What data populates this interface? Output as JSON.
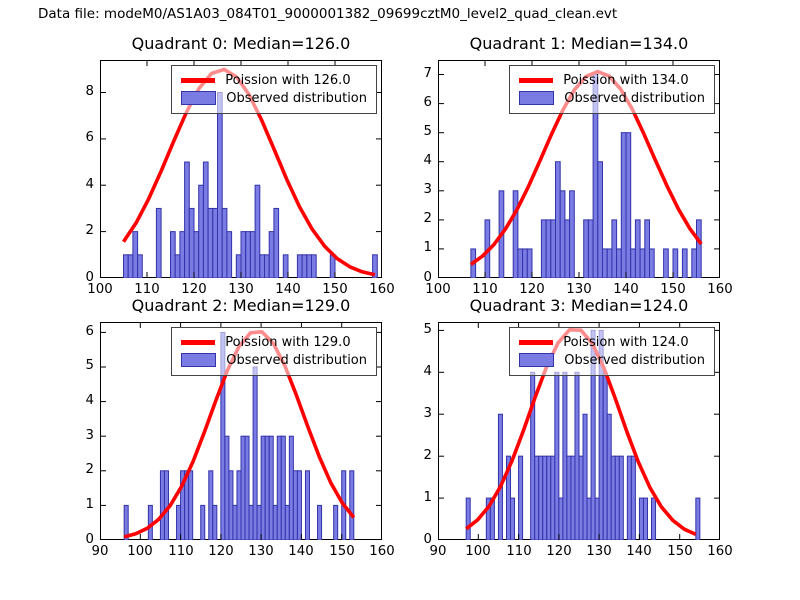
{
  "figure": {
    "suptitle": "Data file: modeM0/AS1A03_084T01_9000001382_09699cztM0_level2_quad_clean.evt"
  },
  "colors": {
    "bar_fill": "#7b7be4",
    "bar_edge": "#3333aa",
    "curve": "#ff0000",
    "legend_border": "#444444",
    "axis": "#000000"
  },
  "chart_data": [
    {
      "type": "bar",
      "title": "Quadrant 0: Median=126.0",
      "median": 126.0,
      "legend": [
        "Poission with 126.0",
        "Observed distribution"
      ],
      "xlim": [
        100,
        160
      ],
      "ylim": [
        0,
        9.4
      ],
      "xticks": [
        100,
        110,
        120,
        130,
        140,
        150,
        160
      ],
      "yticks": [
        0,
        2,
        4,
        6,
        8
      ],
      "bars": {
        "x": [
          105,
          106,
          107,
          108,
          112,
          115,
          116,
          117,
          118,
          119,
          120,
          121,
          122,
          123,
          124,
          125,
          126,
          127,
          129,
          130,
          131,
          132,
          133,
          134,
          135,
          136,
          137,
          139,
          142,
          143,
          144,
          145,
          149,
          158
        ],
        "h": [
          1,
          1,
          2,
          1,
          3,
          2,
          1,
          2,
          5,
          3,
          2,
          4,
          5,
          3,
          3,
          8,
          3,
          2,
          1,
          2,
          2,
          2,
          4,
          1,
          1,
          2,
          3,
          1,
          1,
          1,
          1,
          1,
          1,
          1
        ]
      },
      "poisson": {
        "mu": 126,
        "peak": 9.0,
        "x_start": 105,
        "x_end": 158.5,
        "samples": 20
      }
    },
    {
      "type": "bar",
      "title": "Quadrant 1: Median=134.0",
      "median": 134.0,
      "legend": [
        "Poission with 134.0",
        "Observed distribution"
      ],
      "xlim": [
        100,
        160
      ],
      "ylim": [
        0,
        7.5
      ],
      "xticks": [
        100,
        110,
        120,
        130,
        140,
        150,
        160
      ],
      "yticks": [
        0,
        1,
        2,
        3,
        4,
        5,
        6,
        7
      ],
      "bars": {
        "x": [
          107,
          110,
          113,
          116,
          117,
          118,
          119,
          122,
          123,
          124,
          125,
          126,
          127,
          128,
          131,
          132,
          133,
          134,
          135,
          136,
          137,
          138,
          139,
          140,
          141,
          142,
          143,
          144,
          145,
          148,
          150,
          152,
          154,
          155
        ],
        "h": [
          1,
          2,
          3,
          3,
          1,
          1,
          1,
          2,
          2,
          2,
          4,
          3,
          2,
          3,
          2,
          2,
          7,
          4,
          1,
          1,
          2,
          1,
          5,
          5,
          1,
          2,
          1,
          2,
          1,
          1,
          1,
          1,
          1,
          2
        ]
      },
      "poisson": {
        "mu": 134,
        "peak": 7.1,
        "x_start": 107,
        "x_end": 156,
        "samples": 20
      }
    },
    {
      "type": "bar",
      "title": "Quadrant 2: Median=129.0",
      "median": 129.0,
      "legend": [
        "Poission with 129.0",
        "Observed distribution"
      ],
      "xlim": [
        90,
        160
      ],
      "ylim": [
        0,
        6.3
      ],
      "xticks": [
        90,
        100,
        110,
        120,
        130,
        140,
        150,
        160
      ],
      "yticks": [
        0,
        1,
        2,
        3,
        4,
        5,
        6
      ],
      "bars": {
        "x": [
          96,
          102,
          105,
          106,
          109,
          110,
          111,
          112,
          115,
          117,
          118,
          120,
          121,
          122,
          123,
          124,
          125,
          126,
          127,
          128,
          129,
          130,
          131,
          132,
          133,
          134,
          135,
          136,
          137,
          138,
          139,
          141,
          144,
          148,
          150,
          152
        ],
        "h": [
          1,
          1,
          2,
          2,
          1,
          2,
          2,
          2,
          1,
          2,
          1,
          6,
          3,
          2,
          1,
          2,
          3,
          3,
          1,
          5,
          1,
          3,
          3,
          3,
          1,
          3,
          3,
          1,
          3,
          2,
          2,
          2,
          1,
          1,
          2,
          2
        ]
      },
      "poisson": {
        "mu": 129,
        "peak": 6.05,
        "x_start": 96,
        "x_end": 153,
        "samples": 20
      }
    },
    {
      "type": "bar",
      "title": "Quadrant 3: Median=124.0",
      "median": 124.0,
      "legend": [
        "Poission with 124.0",
        "Observed distribution"
      ],
      "xlim": [
        90,
        160
      ],
      "ylim": [
        0,
        5.2
      ],
      "xticks": [
        90,
        100,
        110,
        120,
        130,
        140,
        150,
        160
      ],
      "yticks": [
        0,
        1,
        2,
        3,
        4,
        5
      ],
      "bars": {
        "x": [
          97,
          102,
          103,
          105,
          107,
          108,
          110,
          113,
          114,
          115,
          116,
          117,
          118,
          119,
          120,
          121,
          122,
          123,
          124,
          125,
          126,
          127,
          128,
          129,
          130,
          131,
          132,
          133,
          134,
          135,
          137,
          138,
          140,
          141,
          143,
          154
        ],
        "h": [
          1,
          1,
          1,
          3,
          2,
          1,
          2,
          4,
          2,
          2,
          2,
          2,
          2,
          4,
          1,
          4,
          2,
          2,
          4,
          2,
          3,
          1,
          5,
          1,
          5,
          4,
          3,
          2,
          2,
          2,
          2,
          2,
          1,
          1,
          1,
          1
        ]
      },
      "poisson": {
        "mu": 124,
        "peak": 5.05,
        "x_start": 97,
        "x_end": 154,
        "samples": 20
      }
    }
  ]
}
